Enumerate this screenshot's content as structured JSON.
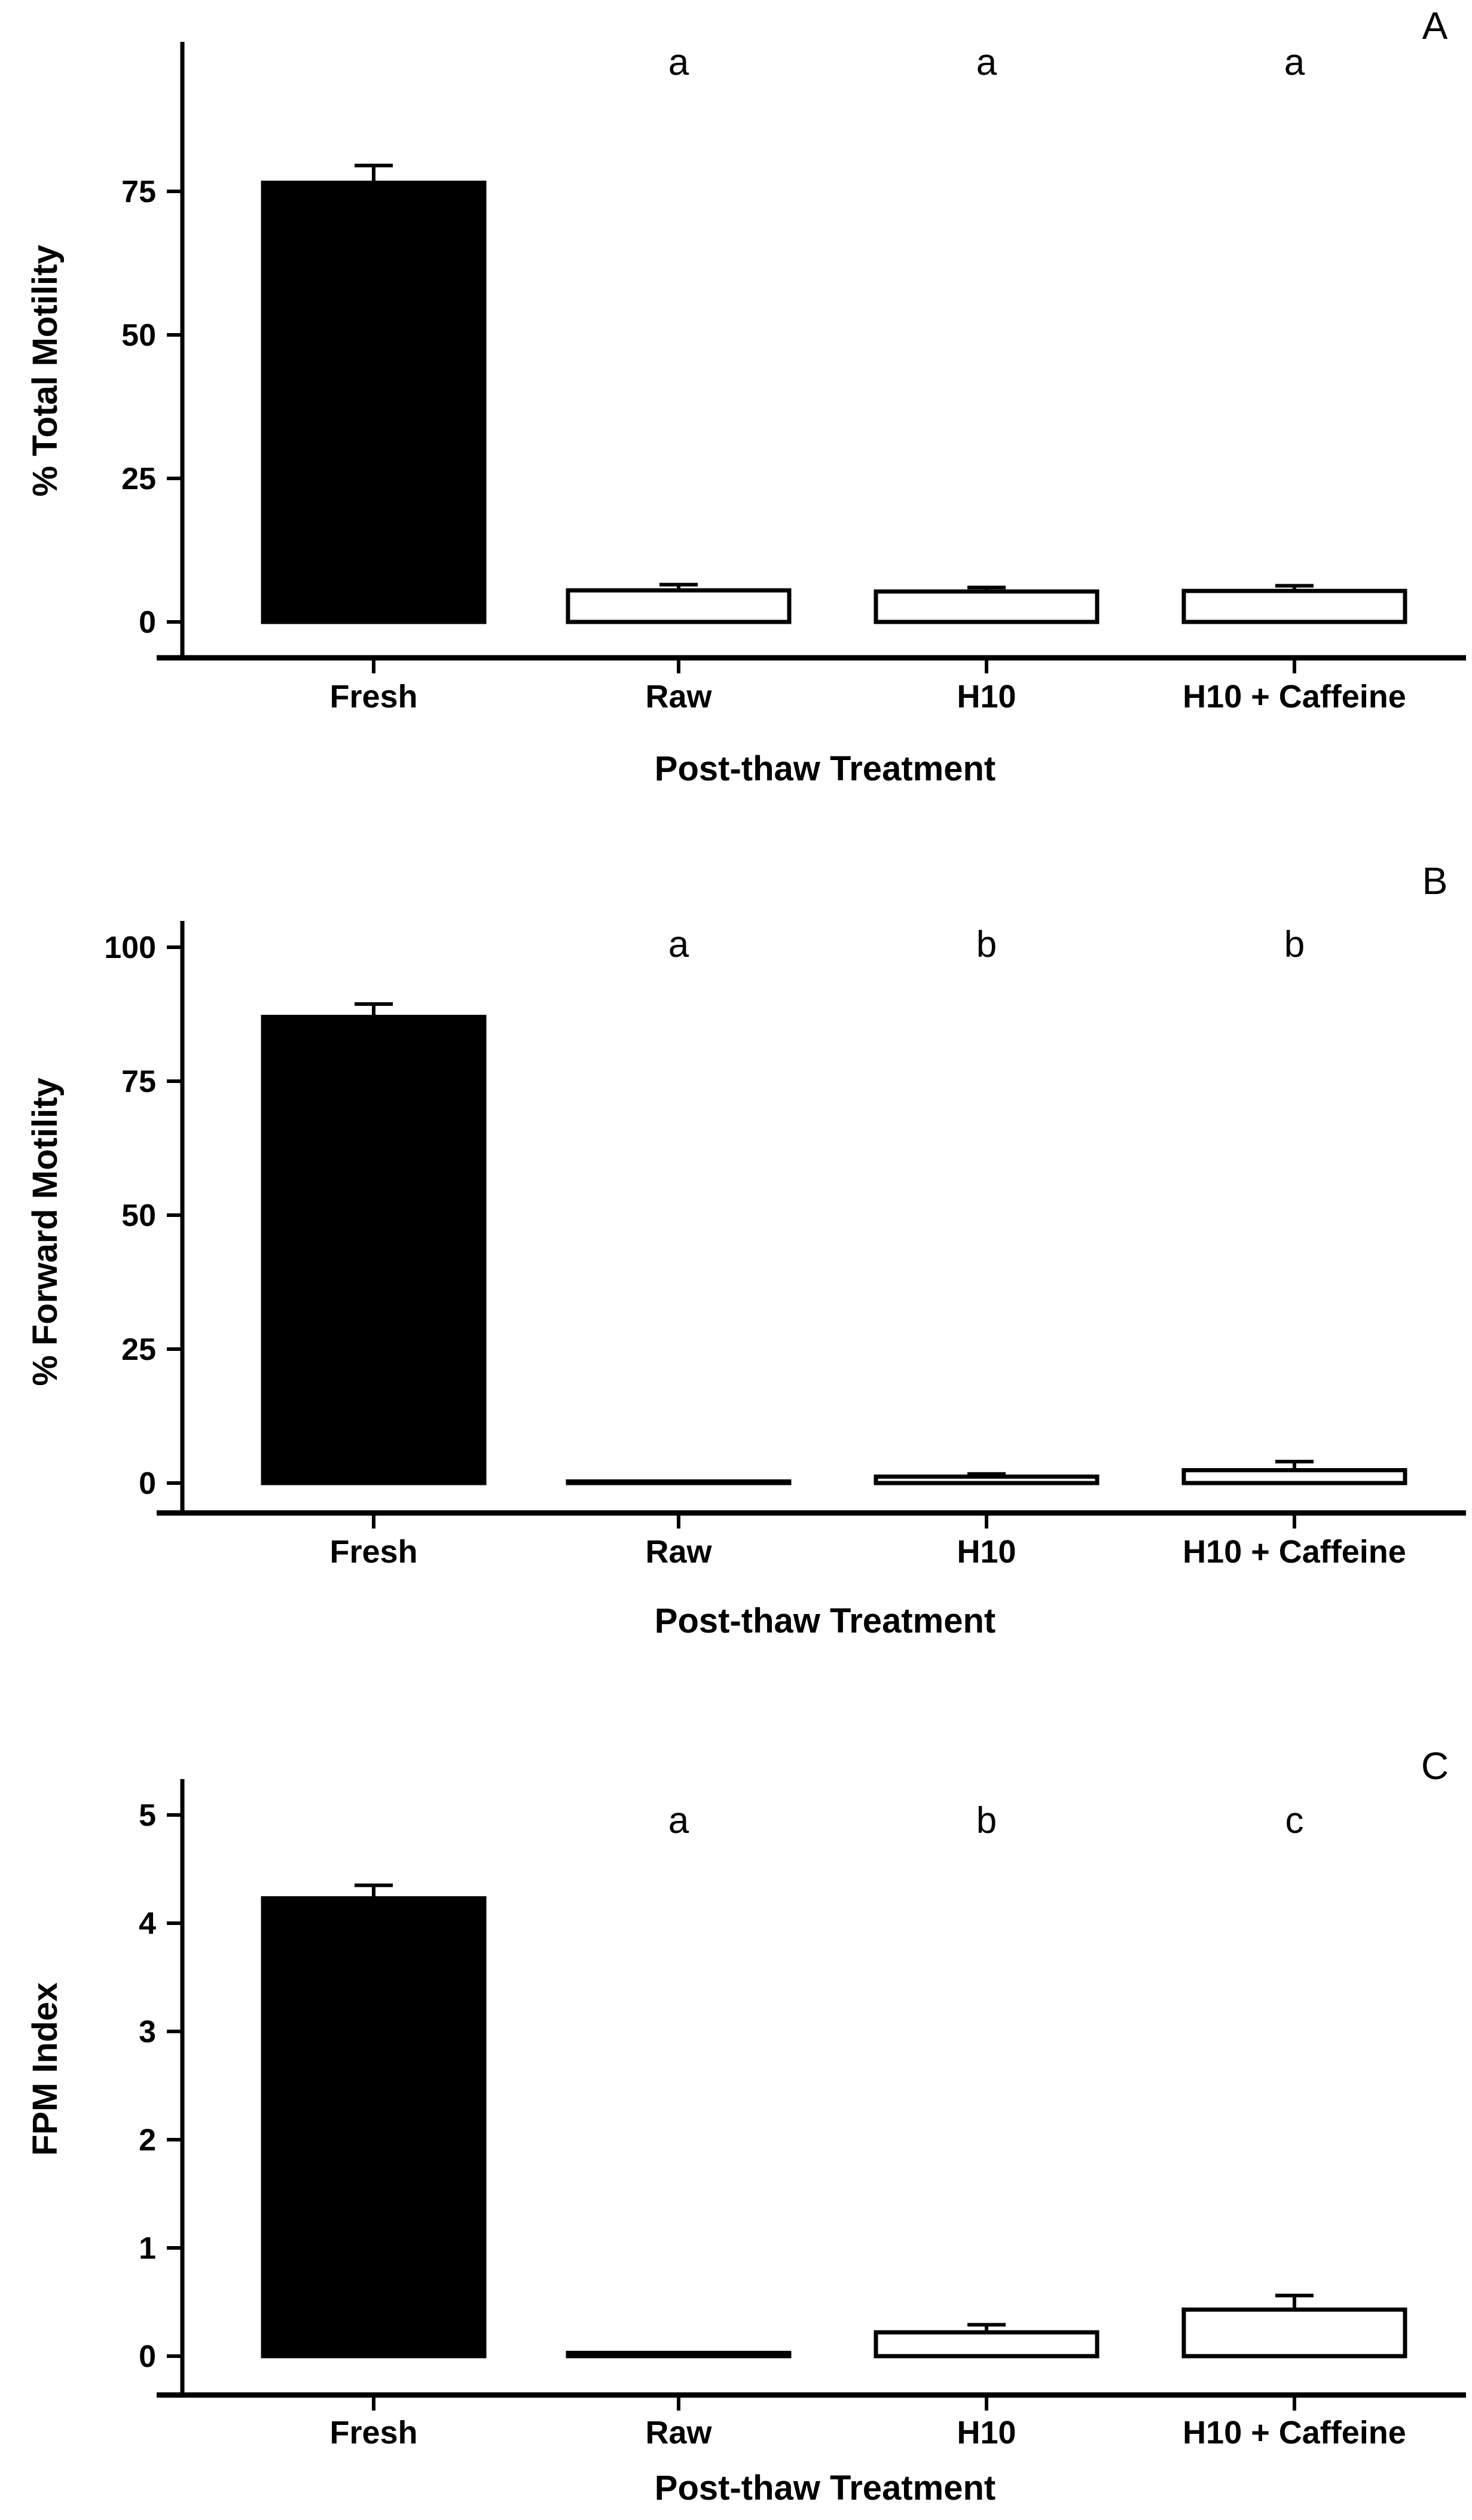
{
  "figure": {
    "background": "#ffffff",
    "stroke_color": "#000000",
    "x_axis_title": "Post-thaw Treatment",
    "panel_labels": [
      "A",
      "B",
      "C"
    ]
  },
  "chart_data": [
    {
      "type": "bar",
      "panel_label": "A",
      "title": "",
      "xlabel": "Post-thaw Treatment",
      "ylabel": "% Total Motility",
      "categories": [
        "Fresh",
        "Raw",
        "H10",
        "H10 + Caffeine"
      ],
      "values": [
        76.5,
        5.5,
        5.3,
        5.4
      ],
      "errors": [
        3.0,
        1.0,
        0.7,
        0.9
      ],
      "sig_letters": [
        "",
        "a",
        "a",
        "a"
      ],
      "yticks": [
        0,
        25,
        50,
        75
      ],
      "ylim": [
        0,
        100
      ],
      "bar_fills": [
        "#000000",
        "#ffffff",
        "#ffffff",
        "#ffffff"
      ],
      "grid": false,
      "legend": "none"
    },
    {
      "type": "bar",
      "panel_label": "B",
      "title": "",
      "xlabel": "Post-thaw Treatment",
      "ylabel": "% Forward Motility",
      "categories": [
        "Fresh",
        "Raw",
        "H10",
        "H10 + Caffeine"
      ],
      "values": [
        87.0,
        0.3,
        1.2,
        2.4
      ],
      "errors": [
        2.4,
        0,
        0.5,
        1.6
      ],
      "sig_letters": [
        "",
        "a",
        "b",
        "b"
      ],
      "yticks": [
        0,
        25,
        50,
        75,
        100
      ],
      "ylim": [
        0,
        105
      ],
      "bar_fills": [
        "#000000",
        "#ffffff",
        "#ffffff",
        "#ffffff"
      ],
      "grid": false,
      "legend": "none"
    },
    {
      "type": "bar",
      "panel_label": "C",
      "title": "",
      "xlabel": "Post-thaw Treatment",
      "ylabel": "FPM Index",
      "categories": [
        "Fresh",
        "Raw",
        "H10",
        "H10 + Caffeine"
      ],
      "values": [
        4.23,
        0.03,
        0.22,
        0.43
      ],
      "errors": [
        0.12,
        0,
        0.07,
        0.13
      ],
      "sig_letters": [
        "",
        "a",
        "b",
        "c"
      ],
      "yticks": [
        0,
        1,
        2,
        3,
        4,
        5
      ],
      "ylim": [
        0,
        5.3
      ],
      "bar_fills": [
        "#000000",
        "#ffffff",
        "#ffffff",
        "#ffffff"
      ],
      "grid": false,
      "legend": "none"
    }
  ]
}
